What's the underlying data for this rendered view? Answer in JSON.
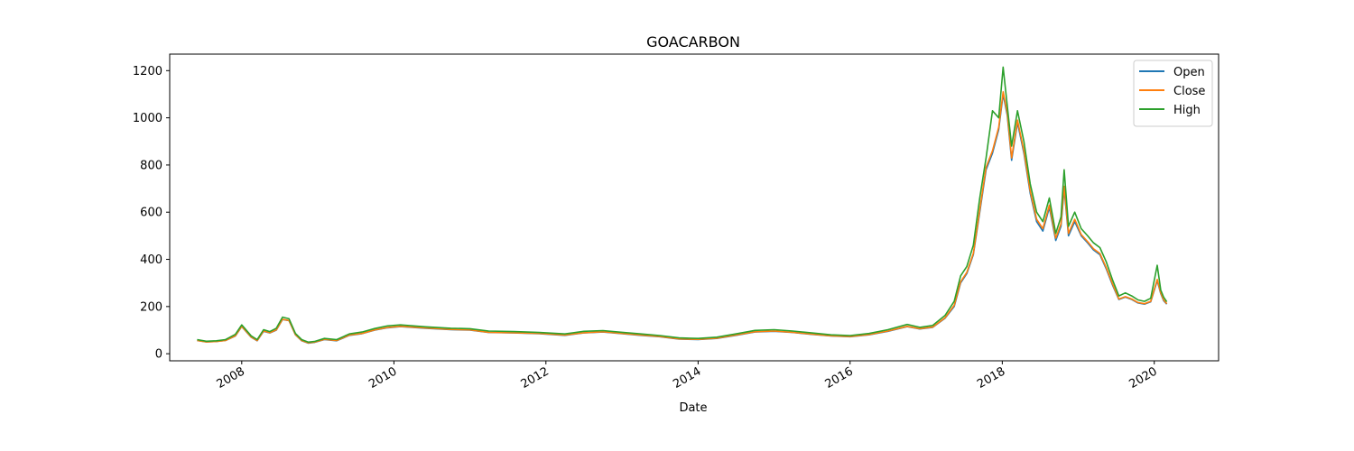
{
  "chart_data": {
    "type": "line",
    "title": "GOACARBON",
    "xlabel": "Date",
    "ylabel": "",
    "xlim": [
      "2007-01-20",
      "2020-11-05"
    ],
    "ylim": [
      -30,
      1270
    ],
    "x_ticks": [
      "2008",
      "2010",
      "2012",
      "2014",
      "2016",
      "2018",
      "2020"
    ],
    "y_ticks": [
      0,
      200,
      400,
      600,
      800,
      1000,
      1200
    ],
    "legend": "top-right",
    "grid": false,
    "x": [
      "2007-06-01",
      "2007-07-15",
      "2007-09-01",
      "2007-10-15",
      "2007-12-01",
      "2008-01-01",
      "2008-02-15",
      "2008-03-15",
      "2008-04-15",
      "2008-05-15",
      "2008-06-15",
      "2008-07-15",
      "2008-08-15",
      "2008-09-15",
      "2008-10-15",
      "2008-11-15",
      "2008-12-15",
      "2009-02-01",
      "2009-04-01",
      "2009-06-01",
      "2009-08-01",
      "2009-10-01",
      "2009-12-01",
      "2010-02-01",
      "2010-06-01",
      "2010-10-01",
      "2011-01-01",
      "2011-04-01",
      "2011-08-01",
      "2011-12-01",
      "2012-04-01",
      "2012-07-01",
      "2012-10-01",
      "2013-01-01",
      "2013-04-01",
      "2013-07-01",
      "2013-10-01",
      "2014-01-01",
      "2014-04-01",
      "2014-07-01",
      "2014-10-01",
      "2015-01-01",
      "2015-04-01",
      "2015-07-01",
      "2015-10-01",
      "2016-01-01",
      "2016-04-01",
      "2016-07-01",
      "2016-10-01",
      "2016-12-01",
      "2017-02-01",
      "2017-04-01",
      "2017-05-15",
      "2017-06-15",
      "2017-07-15",
      "2017-08-15",
      "2017-09-15",
      "2017-10-15",
      "2017-11-15",
      "2017-12-15",
      "2018-01-05",
      "2018-01-25",
      "2018-02-15",
      "2018-03-15",
      "2018-04-15",
      "2018-05-15",
      "2018-06-15",
      "2018-07-15",
      "2018-08-15",
      "2018-09-15",
      "2018-10-10",
      "2018-10-25",
      "2018-11-15",
      "2018-12-15",
      "2019-01-15",
      "2019-02-15",
      "2019-03-15",
      "2019-04-15",
      "2019-05-15",
      "2019-06-15",
      "2019-07-15",
      "2019-08-15",
      "2019-09-15",
      "2019-10-15",
      "2019-11-15",
      "2019-12-15",
      "2020-01-15",
      "2020-02-01",
      "2020-02-15",
      "2020-03-01"
    ],
    "series": [
      {
        "name": "Open",
        "color": "#1f77b4",
        "values": [
          56,
          50,
          52,
          56,
          75,
          115,
          70,
          55,
          95,
          88,
          100,
          145,
          140,
          80,
          55,
          45,
          48,
          60,
          55,
          78,
          85,
          100,
          110,
          115,
          108,
          102,
          100,
          90,
          88,
          85,
          78,
          88,
          92,
          85,
          78,
          72,
          62,
          60,
          65,
          78,
          92,
          95,
          90,
          82,
          75,
          72,
          80,
          95,
          115,
          105,
          112,
          150,
          200,
          300,
          340,
          420,
          600,
          780,
          850,
          950,
          1100,
          1010,
          820,
          980,
          850,
          680,
          560,
          520,
          620,
          480,
          540,
          700,
          500,
          560,
          500,
          470,
          440,
          420,
          360,
          290,
          230,
          240,
          230,
          215,
          210,
          220,
          310,
          255,
          225,
          210
        ]
      },
      {
        "name": "Close",
        "color": "#ff7f0e",
        "values": [
          56,
          50,
          52,
          56,
          76,
          116,
          71,
          56,
          96,
          89,
          101,
          146,
          141,
          81,
          56,
          46,
          49,
          61,
          56,
          79,
          86,
          101,
          111,
          116,
          109,
          103,
          101,
          91,
          89,
          86,
          79,
          89,
          93,
          86,
          79,
          73,
          63,
          61,
          66,
          79,
          93,
          96,
          91,
          83,
          76,
          73,
          81,
          96,
          116,
          106,
          113,
          152,
          205,
          305,
          345,
          425,
          610,
          790,
          860,
          960,
          1110,
          1020,
          830,
          990,
          860,
          690,
          570,
          530,
          630,
          490,
          550,
          710,
          510,
          570,
          505,
          475,
          445,
          425,
          365,
          295,
          232,
          242,
          232,
          217,
          212,
          222,
          315,
          258,
          228,
          212
        ]
      },
      {
        "name": "High",
        "color": "#2ca02c",
        "values": [
          60,
          53,
          55,
          60,
          82,
          122,
          76,
          60,
          102,
          94,
          108,
          155,
          148,
          86,
          60,
          49,
          52,
          65,
          60,
          84,
          92,
          107,
          118,
          122,
          114,
          108,
          106,
          96,
          94,
          90,
          84,
          95,
          98,
          91,
          84,
          77,
          67,
          65,
          70,
          84,
          99,
          102,
          96,
          88,
          80,
          77,
          86,
          102,
          124,
          112,
          120,
          162,
          222,
          330,
          370,
          460,
          660,
          830,
          1030,
          1000,
          1215,
          1050,
          880,
          1030,
          900,
          720,
          600,
          560,
          660,
          510,
          580,
          780,
          540,
          600,
          530,
          500,
          470,
          450,
          390,
          312,
          245,
          258,
          245,
          228,
          222,
          235,
          375,
          270,
          240,
          220
        ]
      }
    ]
  }
}
